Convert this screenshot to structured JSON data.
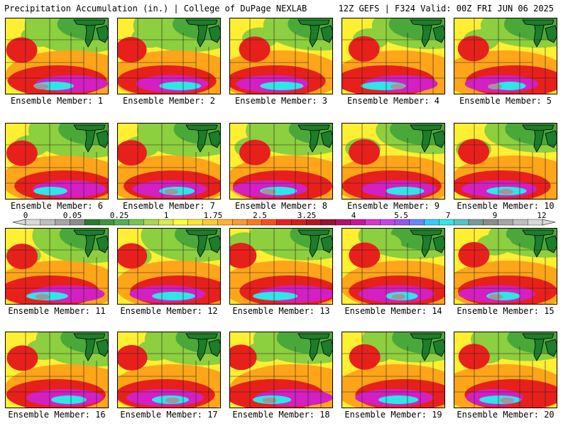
{
  "header": {
    "left": "Precipitation Accumulation (in.) | College of DuPage NEXLAB",
    "right": "12Z GEFS | F324 Valid: 00Z FRI JUN 06 2025"
  },
  "member_label": "Ensemble Member:",
  "members": [
    {
      "number": "1"
    },
    {
      "number": "2"
    },
    {
      "number": "3"
    },
    {
      "number": "4"
    },
    {
      "number": "5"
    },
    {
      "number": "6"
    },
    {
      "number": "7"
    },
    {
      "number": "8"
    },
    {
      "number": "9"
    },
    {
      "number": "10"
    },
    {
      "number": "11"
    },
    {
      "number": "12"
    },
    {
      "number": "13"
    },
    {
      "number": "14"
    },
    {
      "number": "15"
    },
    {
      "number": "16"
    },
    {
      "number": "17"
    },
    {
      "number": "18"
    },
    {
      "number": "19"
    },
    {
      "number": "20"
    }
  ],
  "colorbar": {
    "tick_labels": [
      "0",
      "0.05",
      "0.25",
      "1",
      "1.75",
      "2.5",
      "3.25",
      "4",
      "5.5",
      "7",
      "9",
      "12"
    ],
    "colors": [
      "#d9d9d9",
      "#bfbfbf",
      "#a6a6a6",
      "#8c8c8c",
      "#2d7a2d",
      "#3f963f",
      "#52b052",
      "#74c74a",
      "#a6d94a",
      "#d6ed4a",
      "#ffff33",
      "#ffe633",
      "#ffcc33",
      "#ffb233",
      "#ff9933",
      "#ff7a1a",
      "#ff4d1a",
      "#ee1c1c",
      "#d61c1c",
      "#b81422",
      "#991133",
      "#b0106a",
      "#cc1199",
      "#e033cc",
      "#c844e8",
      "#9a55f0",
      "#6688ff",
      "#33ccff",
      "#33e6e6",
      "#55c4c4",
      "#7a9a9a",
      "#8c8c8c",
      "#a6a6a6",
      "#bfbfbf",
      "#d9d9d9"
    ]
  },
  "palette": {
    "green_dark": "#1f8c2f",
    "green": "#4aa83a",
    "green_light": "#8ccf3f",
    "yellow": "#ffef33",
    "orange": "#ffa51a",
    "red": "#e8201c",
    "red_dark": "#b8142a",
    "magenta": "#d41fc2",
    "cyan": "#2ee6e6",
    "gray": "#9a9a9a",
    "lake": "#1e7d2a"
  }
}
